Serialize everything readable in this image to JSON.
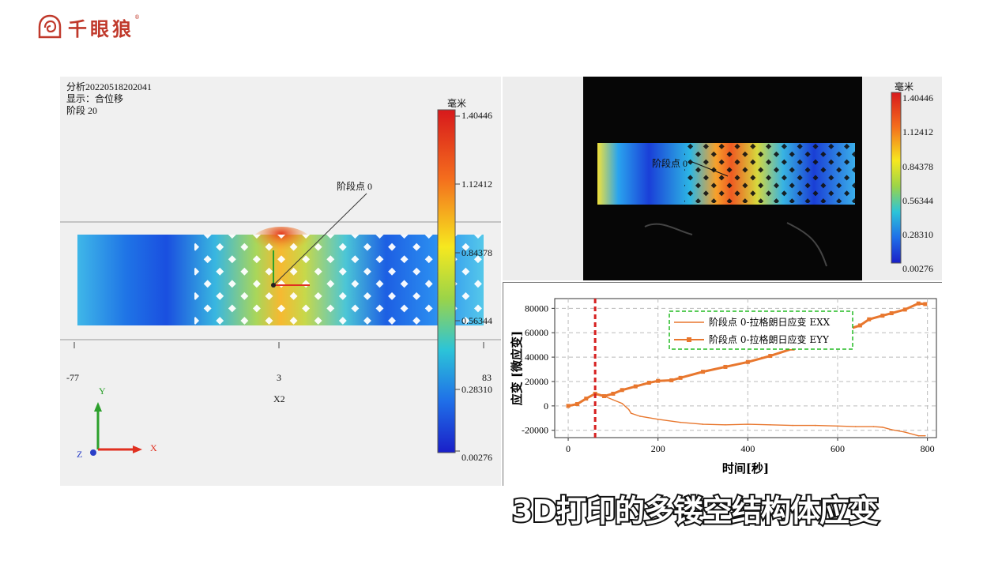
{
  "brand": {
    "name": "千眼狼",
    "mark": "®"
  },
  "left_view": {
    "analysis": "分析20220518202041",
    "display": "显示：合位移",
    "stage": "阶段 20",
    "point_label": "阶段点 0",
    "axis_ticks": [
      "-77",
      "3",
      "83"
    ],
    "axis_name": "X2",
    "triad": {
      "y": "Y",
      "x": "X",
      "z": "Z"
    },
    "colorbar": {
      "unit": "毫米",
      "ticks": [
        "1.40446",
        "1.12412",
        "0.84378",
        "0.56344",
        "0.28310",
        "0.00276"
      ]
    }
  },
  "right_view": {
    "point_label": "阶段点 0",
    "colorbar": {
      "unit": "毫米",
      "ticks": [
        "1.40446",
        "1.12412",
        "0.84378",
        "0.56344",
        "0.28310",
        "0.00276"
      ]
    }
  },
  "chart_data": {
    "type": "line",
    "xlabel": "时间[秒]",
    "ylabel": "应变 [微应变]",
    "xlim": [
      -30,
      820
    ],
    "ylim": [
      -26000,
      88000
    ],
    "xticks": [
      0,
      200,
      400,
      600,
      800
    ],
    "yticks": [
      -20000,
      0,
      20000,
      40000,
      60000,
      80000
    ],
    "grid": true,
    "legend_position": "top-right",
    "marker_line_x": 60,
    "series": [
      {
        "name": "阶段点 0-拉格朗日应变 EXX",
        "color": "#e8772e",
        "marker": "none",
        "x": [
          0,
          20,
          40,
          60,
          80,
          100,
          120,
          135,
          140,
          160,
          200,
          250,
          300,
          350,
          400,
          450,
          500,
          550,
          600,
          640,
          680,
          700,
          720,
          750,
          780,
          795
        ],
        "y": [
          0,
          2000,
          6000,
          9500,
          8000,
          5000,
          2000,
          -3000,
          -6000,
          -8500,
          -11000,
          -13500,
          -15000,
          -15500,
          -15000,
          -15500,
          -16000,
          -16000,
          -16500,
          -17000,
          -17000,
          -17500,
          -19500,
          -21500,
          -24500,
          -24500
        ]
      },
      {
        "name": "阶段点 0-拉格朗日应变 EYY",
        "color": "#e8772e",
        "marker": "square",
        "x": [
          0,
          20,
          40,
          60,
          80,
          100,
          120,
          150,
          180,
          200,
          230,
          250,
          300,
          350,
          400,
          450,
          500,
          550,
          600,
          650,
          670,
          700,
          720,
          750,
          780,
          795
        ],
        "y": [
          0,
          1500,
          6000,
          10000,
          8000,
          10000,
          13000,
          16000,
          19000,
          20500,
          21000,
          23000,
          28000,
          32000,
          36000,
          41000,
          47000,
          54000,
          60000,
          66000,
          71000,
          74000,
          76000,
          79000,
          84000,
          83500
        ]
      }
    ]
  },
  "caption": "3D打印的多镂空结构体应变"
}
